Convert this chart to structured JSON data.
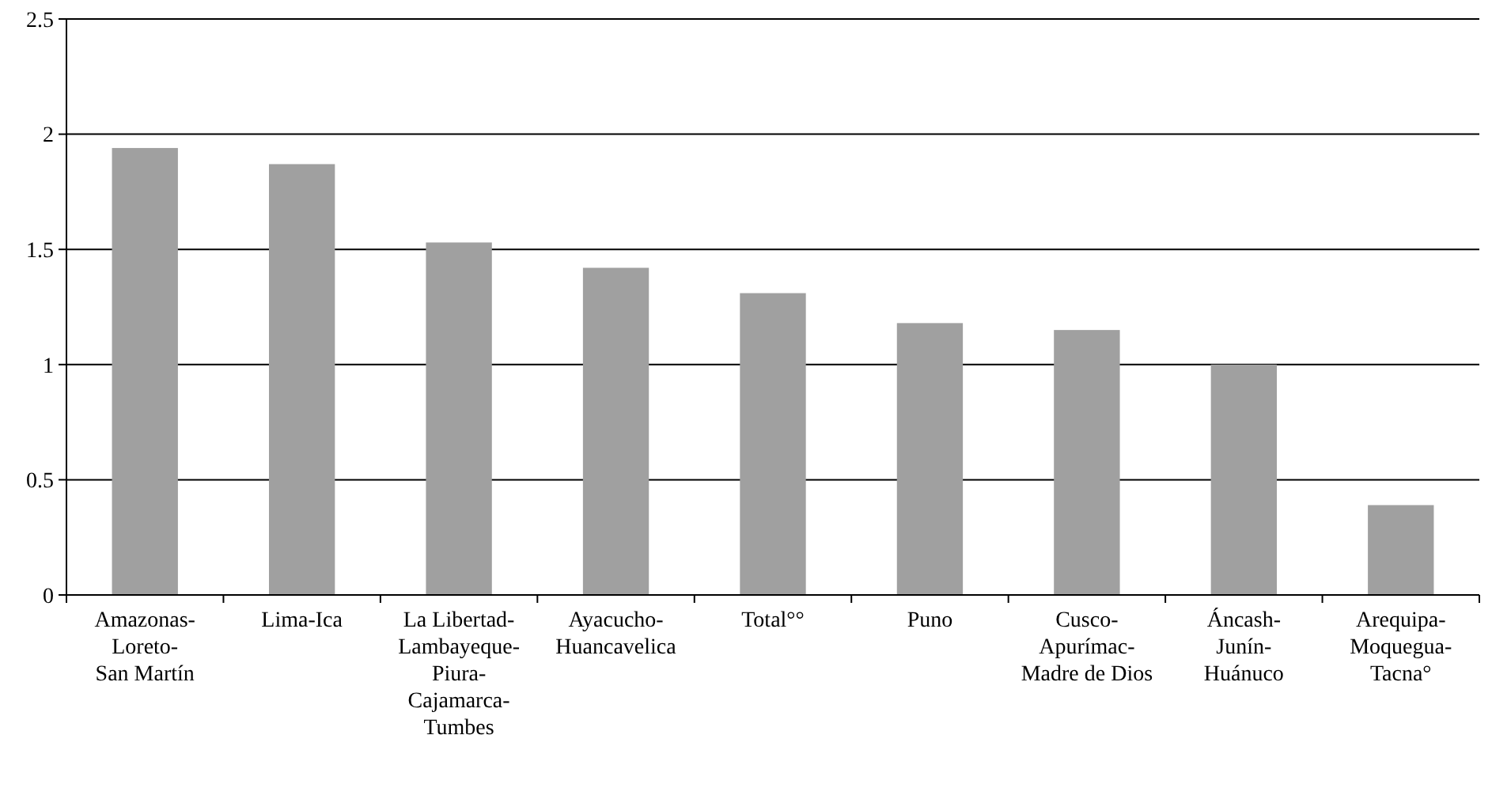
{
  "chart_data": {
    "type": "bar",
    "categories": [
      "Amazonas-Loreto-San Martín",
      "Lima-Ica",
      "La Libertad-Lambayeque-Piura-Cajamarca-Tumbes",
      "Ayacucho-Huancavelica",
      "Total°°",
      "Puno",
      "Cusco-Apurímac-Madre de Dios",
      "Áncash-Junín-Huánuco",
      "Arequipa-Moquegua-Tacna°"
    ],
    "values": [
      1.94,
      1.87,
      1.53,
      1.42,
      1.31,
      1.18,
      1.15,
      1.0,
      0.39
    ],
    "color": "#a0a0a0",
    "ylim": [
      0,
      2.5
    ],
    "yticks": [
      0,
      0.5,
      1,
      1.5,
      2,
      2.5
    ],
    "grid": "y"
  }
}
